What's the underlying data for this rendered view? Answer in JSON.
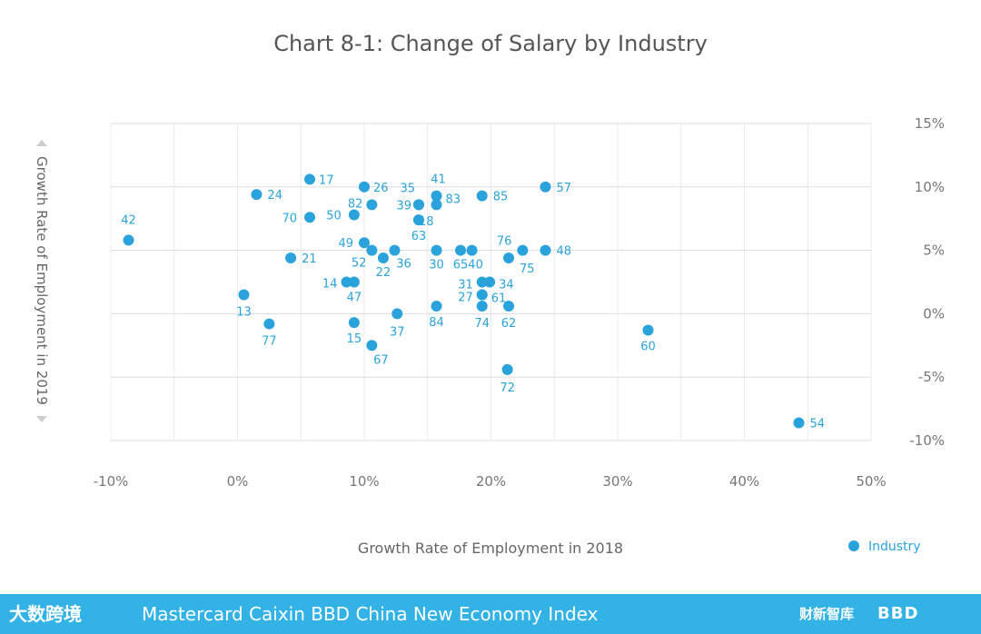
{
  "chart_data": {
    "type": "scatter",
    "title": "Chart 8-1: Change of Salary by Industry",
    "xlabel": "Growth Rate of Employment in 2018",
    "ylabel": "Growth Rate of Employment in 2019",
    "xlim": [
      -10,
      50
    ],
    "ylim": [
      -10,
      15
    ],
    "x_ticks": [
      "-10%",
      "0%",
      "10%",
      "20%",
      "30%",
      "40%",
      "50%"
    ],
    "y_ticks": [
      "15%",
      "10%",
      "5%",
      "0%",
      "-5%",
      "-10%"
    ],
    "grid": true,
    "legend_position": "bottom-right",
    "series": [
      {
        "name": "Industry",
        "color": "#2aa3dc",
        "points": [
          {
            "label": "42",
            "x": -8.6,
            "y": 5.8
          },
          {
            "label": "17",
            "x": 5.7,
            "y": 10.6
          },
          {
            "label": "24",
            "x": 1.5,
            "y": 9.4
          },
          {
            "label": "26",
            "x": 10.0,
            "y": 10.0
          },
          {
            "label": "82",
            "x": 10.6,
            "y": 8.6
          },
          {
            "label": "70",
            "x": 5.7,
            "y": 7.6
          },
          {
            "label": "50",
            "x": 9.2,
            "y": 7.8
          },
          {
            "label": "35",
            "x": 14.3,
            "y": 8.6
          },
          {
            "label": "41",
            "x": 15.7,
            "y": 9.3
          },
          {
            "label": "83",
            "x": 15.7,
            "y": 8.6
          },
          {
            "label": "39",
            "x": 14.3,
            "y": 8.6
          },
          {
            "label": "18",
            "x": 14.3,
            "y": 7.4
          },
          {
            "label": "85",
            "x": 19.3,
            "y": 9.3
          },
          {
            "label": "57",
            "x": 24.3,
            "y": 10.0
          },
          {
            "label": "63",
            "x": 14.3,
            "y": 7.4
          },
          {
            "label": "49",
            "x": 10.0,
            "y": 5.6
          },
          {
            "label": "52",
            "x": 10.6,
            "y": 5.0
          },
          {
            "label": "22",
            "x": 11.5,
            "y": 4.4
          },
          {
            "label": "36",
            "x": 12.4,
            "y": 5.0
          },
          {
            "label": "30",
            "x": 15.7,
            "y": 5.0
          },
          {
            "label": "65",
            "x": 17.6,
            "y": 5.0
          },
          {
            "label": "40",
            "x": 18.5,
            "y": 5.0
          },
          {
            "label": "76",
            "x": 22.5,
            "y": 5.0
          },
          {
            "label": "75",
            "x": 21.4,
            "y": 4.4
          },
          {
            "label": "48",
            "x": 24.3,
            "y": 5.0
          },
          {
            "label": "21",
            "x": 4.2,
            "y": 4.4
          },
          {
            "label": "14",
            "x": 8.6,
            "y": 2.5
          },
          {
            "label": "47",
            "x": 9.2,
            "y": 2.5
          },
          {
            "label": "31",
            "x": 19.3,
            "y": 2.5
          },
          {
            "label": "34",
            "x": 19.9,
            "y": 2.5
          },
          {
            "label": "27",
            "x": 19.3,
            "y": 1.5
          },
          {
            "label": "61",
            "x": 19.3,
            "y": 1.5
          },
          {
            "label": "13",
            "x": 0.5,
            "y": 1.5
          },
          {
            "label": "84",
            "x": 15.7,
            "y": 0.6
          },
          {
            "label": "74",
            "x": 19.3,
            "y": 0.6
          },
          {
            "label": "62",
            "x": 21.4,
            "y": 0.6
          },
          {
            "label": "37",
            "x": 12.6,
            "y": 0.0
          },
          {
            "label": "77",
            "x": 2.5,
            "y": -0.8
          },
          {
            "label": "15",
            "x": 9.2,
            "y": -0.7
          },
          {
            "label": "67",
            "x": 10.6,
            "y": -2.5
          },
          {
            "label": "60",
            "x": 32.4,
            "y": -1.3
          },
          {
            "label": "72",
            "x": 21.3,
            "y": -4.4
          },
          {
            "label": "54",
            "x": 44.3,
            "y": -8.6
          }
        ]
      }
    ]
  },
  "footer": {
    "left_logo": "大数跨境",
    "text": "Mastercard Caixin BBD China New Economy Index",
    "right_logo": "财新智库",
    "right_logo2": "BBD"
  }
}
